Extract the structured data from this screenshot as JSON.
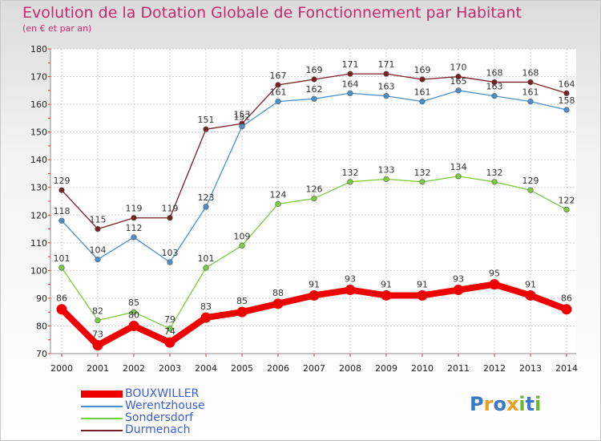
{
  "header": {
    "title": "Evolution de la Dotation Globale de Fonctionnement par Habitant",
    "subtitle": "(en € et par an)"
  },
  "chart_data": {
    "type": "line",
    "title": "Evolution de la Dotation Globale de Fonctionnement par Habitant",
    "subtitle": "(en € et par an)",
    "xlabel": "",
    "ylabel": "",
    "ylim": [
      70,
      180
    ],
    "yticks": [
      70,
      80,
      90,
      100,
      110,
      120,
      130,
      140,
      150,
      160,
      170,
      180
    ],
    "categories": [
      "2000",
      "2001",
      "2002",
      "2003",
      "2004",
      "2005",
      "2006",
      "2007",
      "2008",
      "2009",
      "2010",
      "2011",
      "2012",
      "2013",
      "2014"
    ],
    "legend_position": "bottom-left",
    "series": [
      {
        "name": "Durmenach",
        "color": "#7a1f24",
        "values": [
          129,
          115,
          119,
          119,
          151,
          153,
          167,
          169,
          171,
          171,
          169,
          170,
          168,
          168,
          164
        ]
      },
      {
        "name": "Werentzhouse",
        "color": "#4a8fcc",
        "values": [
          118,
          104,
          112,
          103,
          123,
          152,
          161,
          162,
          164,
          163,
          161,
          165,
          163,
          161,
          158
        ]
      },
      {
        "name": "Sondersdorf",
        "color": "#7ccc3f",
        "values": [
          101,
          82,
          85,
          79,
          101,
          109,
          124,
          126,
          132,
          133,
          132,
          134,
          132,
          129,
          122
        ]
      },
      {
        "name": "BOUXWILLER",
        "color": "#ee0000",
        "values": [
          86,
          73,
          80,
          74,
          83,
          85,
          88,
          91,
          93,
          91,
          91,
          93,
          95,
          91,
          86
        ]
      }
    ]
  },
  "legend": {
    "items": [
      {
        "name": "BOUXWILLER",
        "color": "#ee0000"
      },
      {
        "name": "Werentzhouse",
        "color": "#4a8fcc"
      },
      {
        "name": "Sondersdorf",
        "color": "#7ccc3f"
      },
      {
        "name": "Durmenach",
        "color": "#7a1f24"
      }
    ]
  },
  "logo": {
    "letters": [
      "P",
      "r",
      "o",
      "x",
      "i",
      "t",
      "i"
    ],
    "colors": [
      "#3a78c8",
      "#e8a020",
      "#3a78c8",
      "#e8a020",
      "#6ab82e",
      "#3a78c8",
      "#6ab82e"
    ]
  }
}
